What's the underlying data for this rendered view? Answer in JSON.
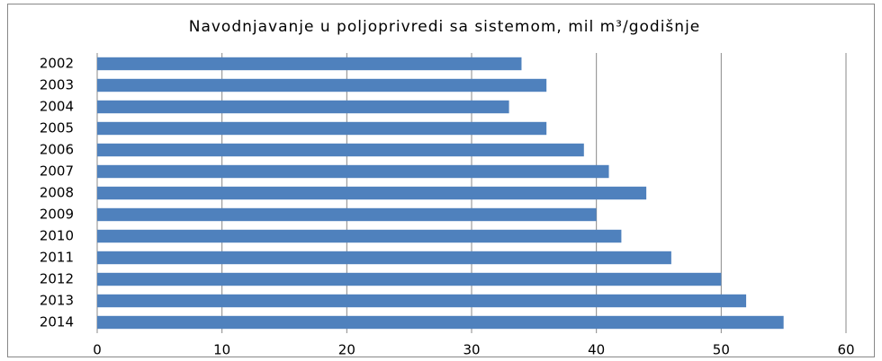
{
  "chart_data": {
    "type": "barh",
    "title": "Navodnjavanje u poljoprivredi sa sistemom, mil m³/godišnje",
    "categories": [
      "2002",
      "2003",
      "2004",
      "2005",
      "2006",
      "2007",
      "2008",
      "2009",
      "2010",
      "2011",
      "2012",
      "2013",
      "2014"
    ],
    "values": [
      34,
      36,
      33,
      36,
      39,
      41,
      44,
      40,
      42,
      46,
      50,
      52,
      55
    ],
    "color": "#4f81bd",
    "xlim": [
      0,
      60
    ],
    "xticks": [
      0,
      10,
      20,
      30,
      40,
      50,
      60
    ],
    "grid": true
  }
}
